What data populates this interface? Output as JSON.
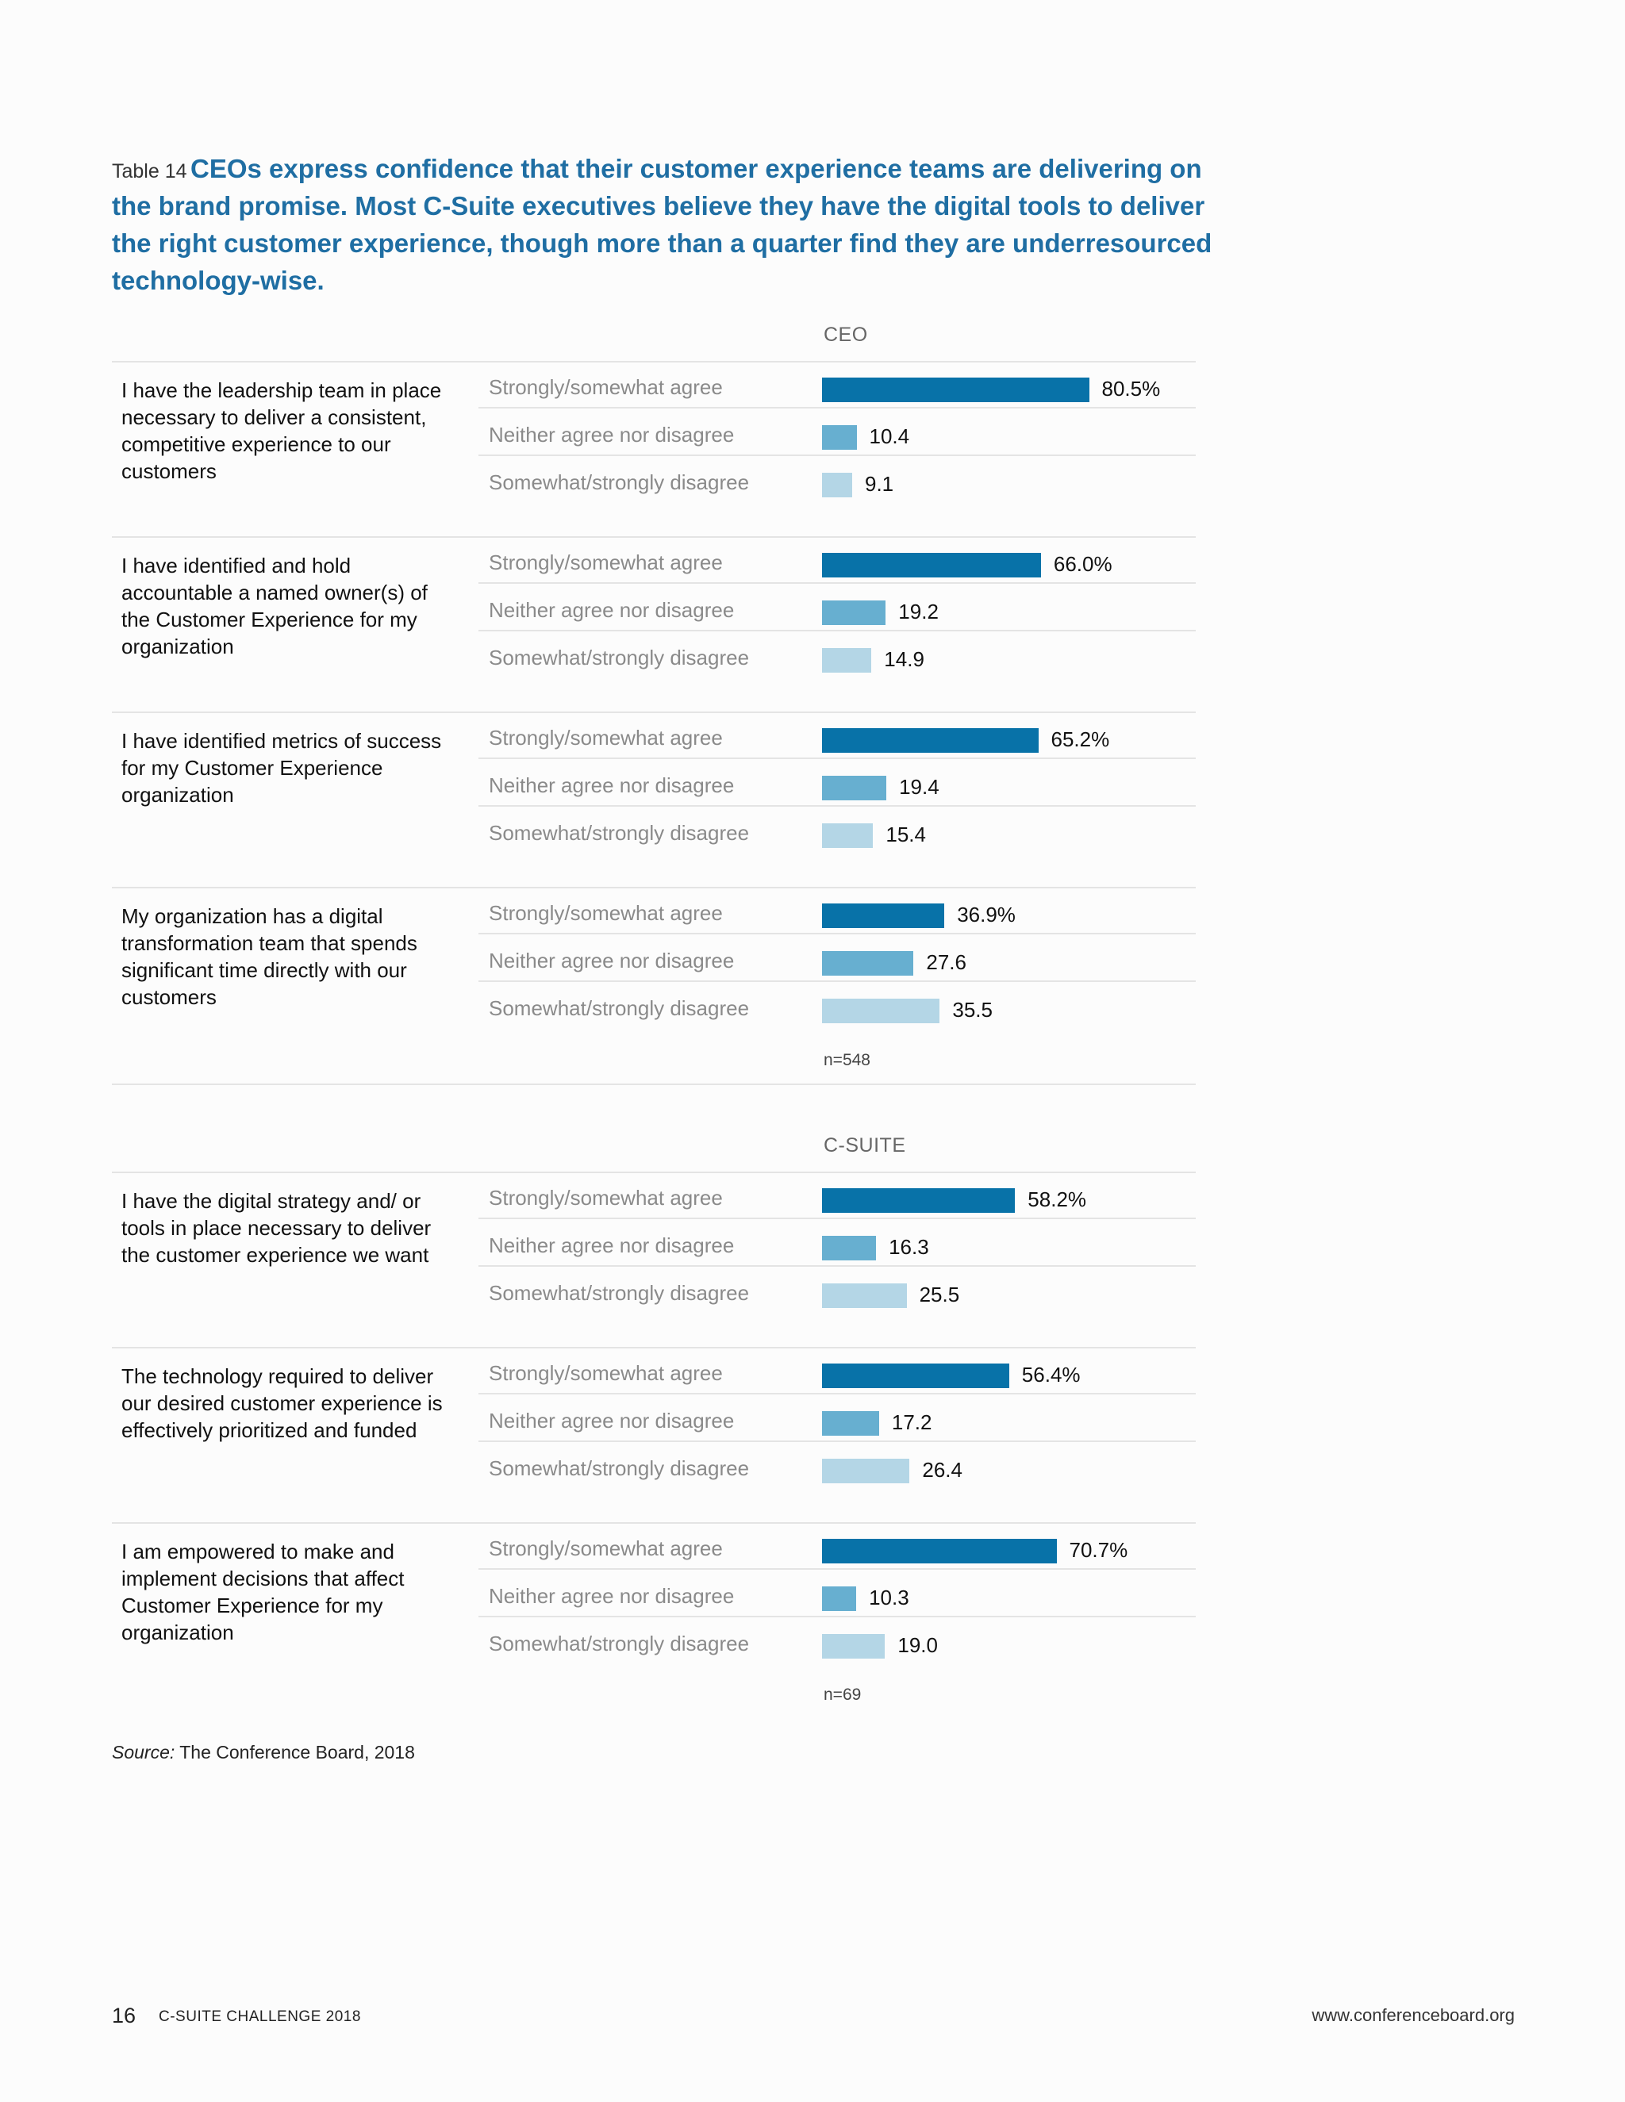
{
  "caption": {
    "label": "Table 14",
    "title": "CEOs express confidence that their customer experience teams are delivering on the brand promise. Most C-Suite executives believe they have the digital tools to deliver the right customer experience, though more than a quarter find they are underresourced technology-wise."
  },
  "chart_data": [
    {
      "type": "bar",
      "orientation": "horizontal",
      "title": "CEO",
      "n_label": "n=548",
      "responses": [
        "Strongly/somewhat agree",
        "Neither agree nor disagree",
        "Somewhat/strongly disagree"
      ],
      "colors": [
        "#0872a8",
        "#67afd0",
        "#b4d6e6"
      ],
      "items": [
        {
          "statement": "I have the leadership team in place necessary to deliver a consistent, competitive experience to our customers",
          "values": [
            80.5,
            10.4,
            9.1
          ],
          "labels": [
            "80.5%",
            "10.4",
            "9.1"
          ]
        },
        {
          "statement": "I have identified and hold accountable a named owner(s) of the Customer Experience for my organization",
          "values": [
            66.0,
            19.2,
            14.9
          ],
          "labels": [
            "66.0%",
            "19.2",
            "14.9"
          ]
        },
        {
          "statement": "I have identified metrics of success for my Customer Experience organization",
          "values": [
            65.2,
            19.4,
            15.4
          ],
          "labels": [
            "65.2%",
            "19.4",
            "15.4"
          ]
        },
        {
          "statement": "My organization has a digital transformation team that spends significant time directly with our customers",
          "values": [
            36.9,
            27.6,
            35.5
          ],
          "labels": [
            "36.9%",
            "27.6",
            "35.5"
          ]
        }
      ]
    },
    {
      "type": "bar",
      "orientation": "horizontal",
      "title": "C-SUITE",
      "n_label": "n=69",
      "responses": [
        "Strongly/somewhat agree",
        "Neither agree nor disagree",
        "Somewhat/strongly disagree"
      ],
      "colors": [
        "#0872a8",
        "#67afd0",
        "#b4d6e6"
      ],
      "items": [
        {
          "statement": "I have the digital strategy and/ or tools in place necessary to deliver the customer experience we want",
          "values": [
            58.2,
            16.3,
            25.5
          ],
          "labels": [
            "58.2%",
            "16.3",
            "25.5"
          ]
        },
        {
          "statement": "The technology required to deliver our desired customer experience is effectively prioritized and funded",
          "values": [
            56.4,
            17.2,
            26.4
          ],
          "labels": [
            "56.4%",
            "17.2",
            "26.4"
          ]
        },
        {
          "statement": "I am empowered to make and implement decisions that affect Customer Experience for my organization",
          "values": [
            70.7,
            10.3,
            19.0
          ],
          "labels": [
            "70.7%",
            "10.3",
            "19.0"
          ]
        }
      ]
    }
  ],
  "source": {
    "label": "Source:",
    "text": "The Conference Board, 2018"
  },
  "footer": {
    "page": "16",
    "publication": "C-SUITE CHALLENGE 2018",
    "url": "www.conferenceboard.org"
  }
}
